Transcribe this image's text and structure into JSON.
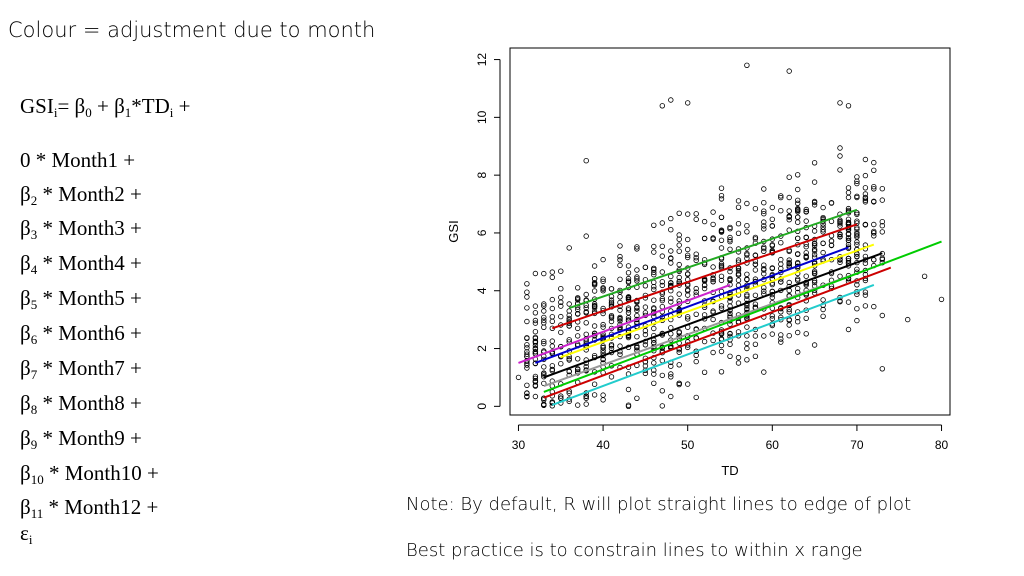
{
  "heading": "Colour = adjustment due to month",
  "equation": [
    {
      "pre": "GSI",
      "sub": "i",
      "post": "= β",
      "sub2": "0",
      "post2": " + β",
      "sub3": "1",
      "post3": "*TD",
      "sub4": "i",
      "post4": " +"
    },
    {
      "pre": "0 * Month1 +"
    },
    {
      "pre": "β",
      "sub": "2",
      "post": " * Month2 +"
    },
    {
      "pre": "β",
      "sub": "3",
      "post": " * Month3 +"
    },
    {
      "pre": "β",
      "sub": "4",
      "post": " * Month4 +"
    },
    {
      "pre": "β",
      "sub": "5",
      "post": " * Month5 +"
    },
    {
      "pre": "β",
      "sub": "6",
      "post": " * Month6 +"
    },
    {
      "pre": "β",
      "sub": "7",
      "post": " * Month7 +"
    },
    {
      "pre": "β",
      "sub": "8",
      "post": " * Month8 +"
    },
    {
      "pre": "β",
      "sub": "9",
      "post": " * Month9 +"
    },
    {
      "pre": "β",
      "sub": "10",
      "post": " * Month10 +"
    },
    {
      "pre": "β",
      "sub": "11",
      "post": " * Month12 +"
    },
    {
      "pre": "ε",
      "sub": "i"
    }
  ],
  "notes": [
    "Note: By default, R will plot straight lines to edge of plot",
    "Best practice is to constrain lines to within x range"
  ],
  "chart_data": {
    "type": "scatter",
    "xlabel": "TD",
    "ylabel": "GSI",
    "xlim": [
      29,
      81
    ],
    "ylim": [
      -0.3,
      12.4
    ],
    "xticks": [
      30,
      40,
      50,
      60,
      70,
      80
    ],
    "yticks": [
      0,
      2,
      4,
      6,
      8,
      10,
      12
    ],
    "grid": false,
    "point_color": "#000000",
    "lines": [
      {
        "color": "#22aa22",
        "x": [
          36,
          70
        ],
        "y": [
          3.4,
          6.8
        ]
      },
      {
        "color": "#cc0000",
        "x": [
          34,
          70
        ],
        "y": [
          2.7,
          6.3
        ]
      },
      {
        "color": "#cc22cc",
        "x": [
          30,
          55
        ],
        "y": [
          1.5,
          4.2
        ]
      },
      {
        "color": "#0000cc",
        "x": [
          32,
          69
        ],
        "y": [
          1.5,
          5.5
        ]
      },
      {
        "color": "#ffff00",
        "x": [
          35,
          72
        ],
        "y": [
          1.7,
          5.6
        ]
      },
      {
        "color": "#000000",
        "x": [
          33,
          73
        ],
        "y": [
          1.0,
          5.3
        ]
      },
      {
        "color": "#999999",
        "x": [
          33,
          70
        ],
        "y": [
          0.7,
          4.6
        ]
      },
      {
        "color": "#00cc00",
        "x": [
          33,
          80
        ],
        "y": [
          0.5,
          5.7
        ]
      },
      {
        "color": "#cc0000",
        "x": [
          33,
          74
        ],
        "y": [
          0.3,
          4.8
        ]
      },
      {
        "color": "#22cccc",
        "x": [
          34,
          72
        ],
        "y": [
          0.05,
          4.2
        ]
      }
    ],
    "outliers": [
      [
        57,
        11.8
      ],
      [
        62,
        11.6
      ],
      [
        68,
        10.5
      ],
      [
        69,
        10.4
      ],
      [
        48,
        10.6
      ],
      [
        47,
        10.4
      ],
      [
        50,
        10.5
      ],
      [
        38,
        8.5
      ],
      [
        80,
        3.7
      ],
      [
        30,
        1.0
      ],
      [
        32,
        2.2
      ],
      [
        76,
        3.0
      ],
      [
        73,
        1.3
      ],
      [
        78,
        4.5
      ],
      [
        72,
        6.0
      ]
    ]
  }
}
